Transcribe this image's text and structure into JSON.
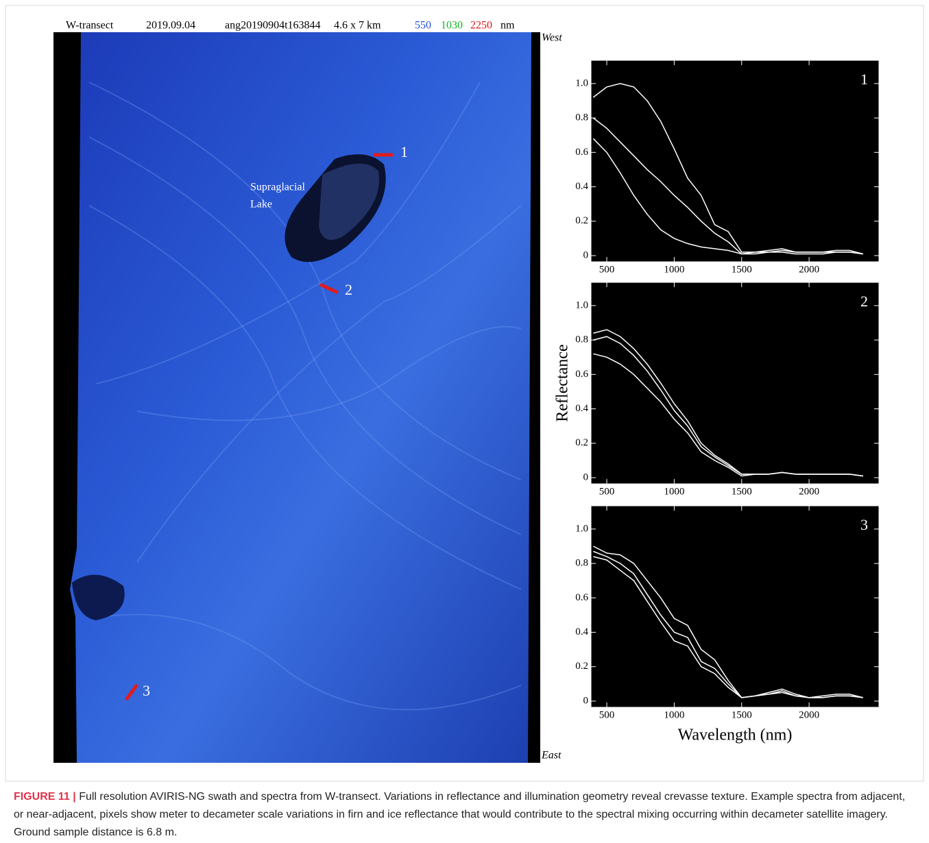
{
  "header": {
    "fields": [
      "W-transect",
      "2019.09.04",
      "ang20190904t163844",
      "4.6 x 7 km"
    ],
    "bands": [
      {
        "label": "550",
        "color": "#1f4fd8"
      },
      {
        "label": "1030",
        "color": "#16b324"
      },
      {
        "label": "2250",
        "color": "#e01818"
      }
    ],
    "unit": "nm"
  },
  "image": {
    "top_label": "West",
    "bottom_label": "East",
    "lake_label": [
      "Supraglacial",
      "Lake"
    ],
    "sites": [
      "1",
      "2",
      "3"
    ]
  },
  "chart_data": [
    {
      "type": "line",
      "title": "1",
      "x": [
        400,
        500,
        600,
        700,
        800,
        900,
        1000,
        1100,
        1200,
        1300,
        1400,
        1500,
        1600,
        1700,
        1800,
        1900,
        2000,
        2100,
        2200,
        2300,
        2400
      ],
      "series": [
        {
          "color": "#ffffff",
          "values": [
            0.92,
            0.98,
            1.0,
            0.98,
            0.9,
            0.78,
            0.62,
            0.45,
            0.35,
            0.18,
            0.14,
            0.02,
            0.02,
            0.03,
            0.04,
            0.02,
            0.02,
            0.02,
            0.03,
            0.03,
            0.01
          ]
        },
        {
          "color": "#ffffff",
          "values": [
            0.8,
            0.74,
            0.66,
            0.58,
            0.5,
            0.43,
            0.35,
            0.28,
            0.2,
            0.13,
            0.08,
            0.01,
            0.02,
            0.02,
            0.03,
            0.02,
            0.02,
            0.02,
            0.02,
            0.02,
            0.01
          ]
        },
        {
          "color": "#ffffff",
          "values": [
            0.68,
            0.6,
            0.48,
            0.35,
            0.24,
            0.15,
            0.1,
            0.07,
            0.05,
            0.04,
            0.03,
            0.01,
            0.01,
            0.02,
            0.02,
            0.01,
            0.01,
            0.01,
            0.02,
            0.02,
            0.01
          ]
        }
      ],
      "xlim": [
        383,
        2518
      ],
      "xticks": [
        500,
        1000,
        1500,
        2000
      ],
      "ylim": [
        -0.036,
        1.135
      ],
      "yticks": [
        0,
        0.2,
        0.4,
        0.6,
        0.8,
        {
          "value": 1,
          "label": "1.0"
        }
      ]
    },
    {
      "type": "line",
      "title": "2",
      "ylabel": "Reflectance",
      "x": [
        400,
        500,
        600,
        700,
        800,
        900,
        1000,
        1100,
        1200,
        1300,
        1400,
        1500,
        1600,
        1700,
        1800,
        1900,
        2000,
        2100,
        2200,
        2300,
        2400
      ],
      "series": [
        {
          "color": "#ffffff",
          "values": [
            0.84,
            0.86,
            0.82,
            0.75,
            0.66,
            0.55,
            0.43,
            0.33,
            0.2,
            0.13,
            0.08,
            0.02,
            0.02,
            0.02,
            0.03,
            0.02,
            0.02,
            0.02,
            0.02,
            0.02,
            0.01
          ]
        },
        {
          "color": "#ffffff",
          "values": [
            0.8,
            0.82,
            0.78,
            0.71,
            0.62,
            0.51,
            0.39,
            0.3,
            0.18,
            0.12,
            0.07,
            0.02,
            0.02,
            0.02,
            0.03,
            0.02,
            0.02,
            0.02,
            0.02,
            0.02,
            0.01
          ]
        },
        {
          "color": "#ffffff",
          "values": [
            0.72,
            0.7,
            0.66,
            0.6,
            0.52,
            0.44,
            0.34,
            0.26,
            0.15,
            0.1,
            0.06,
            0.01,
            0.02,
            0.02,
            0.03,
            0.02,
            0.02,
            0.02,
            0.02,
            0.02,
            0.01
          ]
        }
      ],
      "xlim": [
        383,
        2518
      ],
      "xticks": [
        500,
        1000,
        1500,
        2000
      ],
      "ylim": [
        -0.036,
        1.135
      ],
      "yticks": [
        0,
        0.2,
        0.4,
        0.6,
        0.8,
        {
          "value": 1,
          "label": "1.0"
        }
      ]
    },
    {
      "type": "line",
      "title": "3",
      "xlabel": "Wavelength (nm)",
      "x": [
        400,
        500,
        600,
        700,
        800,
        900,
        1000,
        1100,
        1200,
        1300,
        1400,
        1500,
        1600,
        1700,
        1800,
        1900,
        2000,
        2100,
        2200,
        2300,
        2400
      ],
      "series": [
        {
          "color": "#ffffff",
          "values": [
            0.9,
            0.86,
            0.85,
            0.8,
            0.7,
            0.6,
            0.48,
            0.44,
            0.3,
            0.24,
            0.12,
            0.02,
            0.03,
            0.05,
            0.07,
            0.04,
            0.02,
            0.03,
            0.04,
            0.04,
            0.02
          ]
        },
        {
          "color": "#ffffff",
          "values": [
            0.87,
            0.84,
            0.8,
            0.74,
            0.62,
            0.5,
            0.4,
            0.37,
            0.23,
            0.19,
            0.1,
            0.02,
            0.03,
            0.04,
            0.06,
            0.03,
            0.02,
            0.02,
            0.03,
            0.03,
            0.02
          ]
        },
        {
          "color": "#ffffff",
          "values": [
            0.84,
            0.82,
            0.76,
            0.7,
            0.58,
            0.46,
            0.35,
            0.32,
            0.2,
            0.16,
            0.08,
            0.02,
            0.03,
            0.04,
            0.05,
            0.03,
            0.02,
            0.02,
            0.03,
            0.03,
            0.02
          ]
        }
      ],
      "xlim": [
        383,
        2518
      ],
      "xticks": [
        500,
        1000,
        1500,
        2000
      ],
      "ylim": [
        -0.036,
        1.135
      ],
      "yticks": [
        0,
        0.2,
        0.4,
        0.6,
        0.8,
        {
          "value": 1,
          "label": "1.0"
        }
      ]
    }
  ],
  "caption": {
    "label": "FIGURE 11 |",
    "text": "Full resolution AVIRIS-NG swath and spectra from W-transect. Variations in reflectance and illumination geometry reveal crevasse texture. Example spectra from adjacent, or near-adjacent, pixels show meter to decameter scale variations in firn and ice reflectance that would contribute to the spectral mixing occurring within decameter satellite imagery. Ground sample distance is 6.8 m."
  }
}
